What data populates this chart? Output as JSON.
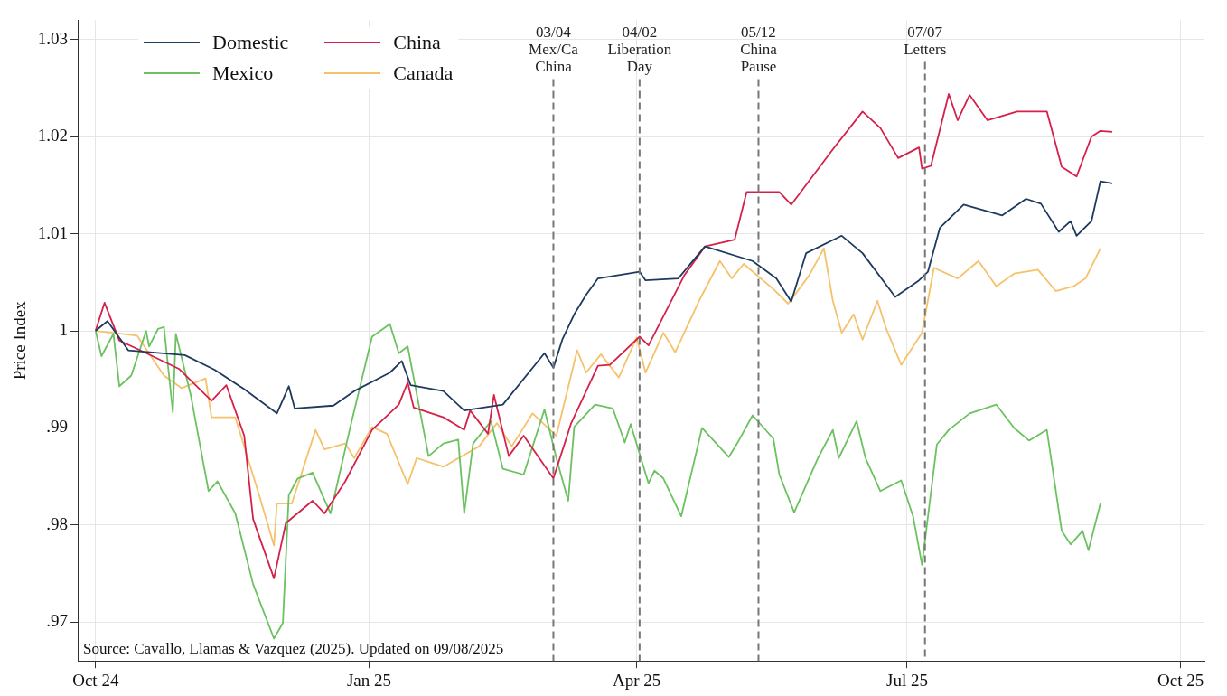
{
  "chart_data": {
    "type": "line",
    "ylabel": "Price Index",
    "xlim": [
      "2024-09-25",
      "2025-10-09"
    ],
    "xticks": [
      {
        "value": "2024-10-01",
        "label": "Oct 24"
      },
      {
        "value": "2025-01-01",
        "label": "Jan 25"
      },
      {
        "value": "2025-04-01",
        "label": "Apr 25"
      },
      {
        "value": "2025-07-01",
        "label": "Jul 25"
      },
      {
        "value": "2025-10-01",
        "label": "Oct 25"
      }
    ],
    "ylim": [
      0.966,
      1.032
    ],
    "yticks": [
      {
        "value": 0.97,
        "label": ".97"
      },
      {
        "value": 0.98,
        "label": ".98"
      },
      {
        "value": 0.99,
        "label": ".99"
      },
      {
        "value": 1,
        "label": "1"
      },
      1.01,
      1.02,
      1.03
    ],
    "grid": true,
    "legend": "top left",
    "line_style": "solid",
    "marker": "none",
    "series": [
      {
        "name": "Domestic",
        "color": "#1f3a5f",
        "x": [
          "2024-10-01",
          "2024-10-05",
          "2024-10-12",
          "2024-10-31",
          "2024-11-10",
          "2024-11-20",
          "2024-12-01",
          "2024-12-05",
          "2024-12-07",
          "2024-12-20",
          "2024-12-27",
          "2025-01-08",
          "2025-01-12",
          "2025-01-15",
          "2025-01-26",
          "2025-02-02",
          "2025-02-15",
          "2025-03-01",
          "2025-03-04",
          "2025-03-07",
          "2025-03-11",
          "2025-03-15",
          "2025-03-19",
          "2025-04-02",
          "2025-04-04",
          "2025-04-15",
          "2025-04-24",
          "2025-05-10",
          "2025-05-18",
          "2025-05-23",
          "2025-05-28",
          "2025-06-09",
          "2025-06-16",
          "2025-06-27",
          "2025-07-05",
          "2025-07-08",
          "2025-07-12",
          "2025-07-20",
          "2025-08-02",
          "2025-08-10",
          "2025-08-15",
          "2025-08-21",
          "2025-08-25",
          "2025-08-27",
          "2025-09-01",
          "2025-09-04",
          "2025-09-08"
        ],
        "values": [
          1.0,
          1.001,
          0.998,
          0.9975,
          0.996,
          0.994,
          0.9915,
          0.9943,
          0.992,
          0.9923,
          0.9938,
          0.9957,
          0.9969,
          0.9944,
          0.9938,
          0.9918,
          0.9924,
          0.9977,
          0.9962,
          0.9991,
          1.0017,
          1.0037,
          1.0054,
          1.0061,
          1.0052,
          1.0054,
          1.0087,
          1.0072,
          1.0054,
          1.003,
          1.008,
          1.0098,
          1.008,
          1.0035,
          1.0052,
          1.0061,
          1.0106,
          1.013,
          1.0119,
          1.0136,
          1.0131,
          1.0102,
          1.0113,
          1.0098,
          1.0113,
          1.0154,
          1.0152
        ]
      },
      {
        "name": "China",
        "color": "#d6204a",
        "x": [
          "2024-10-01",
          "2024-10-04",
          "2024-10-09",
          "2024-10-16",
          "2024-10-29",
          "2024-11-09",
          "2024-11-14",
          "2024-11-20",
          "2024-11-23",
          "2024-11-30",
          "2024-12-04",
          "2024-12-13",
          "2024-12-17",
          "2024-12-24",
          "2025-01-02",
          "2025-01-11",
          "2025-01-14",
          "2025-01-16",
          "2025-01-26",
          "2025-02-02",
          "2025-02-04",
          "2025-02-10",
          "2025-02-12",
          "2025-02-17",
          "2025-02-22",
          "2025-03-04",
          "2025-03-10",
          "2025-03-19",
          "2025-03-23",
          "2025-04-02",
          "2025-04-05",
          "2025-04-17",
          "2025-04-24",
          "2025-05-04",
          "2025-05-08",
          "2025-05-19",
          "2025-05-23",
          "2025-06-06",
          "2025-06-16",
          "2025-06-22",
          "2025-06-28",
          "2025-07-05",
          "2025-07-06",
          "2025-07-09",
          "2025-07-15",
          "2025-07-18",
          "2025-07-22",
          "2025-07-28",
          "2025-08-07",
          "2025-08-17",
          "2025-08-22",
          "2025-08-27",
          "2025-09-01",
          "2025-09-04",
          "2025-09-08"
        ],
        "values": [
          1.0,
          1.0029,
          0.999,
          0.998,
          0.9961,
          0.9928,
          0.9944,
          0.9892,
          0.9806,
          0.9745,
          0.9802,
          0.9825,
          0.9812,
          0.9845,
          0.9898,
          0.9924,
          0.9947,
          0.9921,
          0.9911,
          0.9898,
          0.9918,
          0.9894,
          0.9934,
          0.9871,
          0.9892,
          0.9848,
          0.9905,
          0.9964,
          0.9965,
          0.9994,
          0.9985,
          1.0057,
          1.0087,
          1.0094,
          1.0143,
          1.0143,
          1.013,
          1.0187,
          1.0226,
          1.0209,
          1.0178,
          1.0189,
          1.0167,
          1.017,
          1.0244,
          1.0217,
          1.0243,
          1.0217,
          1.0226,
          1.0226,
          1.0169,
          1.0159,
          1.02,
          1.0206,
          1.0205
        ]
      },
      {
        "name": "Mexico",
        "color": "#6cc160",
        "x": [
          "2024-10-01",
          "2024-10-03",
          "2024-10-07",
          "2024-10-09",
          "2024-10-13",
          "2024-10-18",
          "2024-10-19",
          "2024-10-22",
          "2024-10-24",
          "2024-10-27",
          "2024-10-28",
          "2024-11-02",
          "2024-11-08",
          "2024-11-11",
          "2024-11-17",
          "2024-11-23",
          "2024-11-30",
          "2024-12-03",
          "2024-12-05",
          "2024-12-08",
          "2024-12-13",
          "2024-12-19",
          "2024-12-26",
          "2025-01-02",
          "2025-01-08",
          "2025-01-11",
          "2025-01-14",
          "2025-01-21",
          "2025-01-26",
          "2025-01-31",
          "2025-02-02",
          "2025-02-05",
          "2025-02-11",
          "2025-02-15",
          "2025-02-22",
          "2025-03-01",
          "2025-03-05",
          "2025-03-09",
          "2025-03-11",
          "2025-03-18",
          "2025-03-24",
          "2025-03-28",
          "2025-03-30",
          "2025-04-05",
          "2025-04-07",
          "2025-04-10",
          "2025-04-16",
          "2025-04-23",
          "2025-05-02",
          "2025-05-05",
          "2025-05-10",
          "2025-05-17",
          "2025-05-19",
          "2025-05-24",
          "2025-06-01",
          "2025-06-06",
          "2025-06-08",
          "2025-06-14",
          "2025-06-17",
          "2025-06-22",
          "2025-06-29",
          "2025-07-03",
          "2025-07-06",
          "2025-07-11",
          "2025-07-15",
          "2025-07-22",
          "2025-07-31",
          "2025-08-06",
          "2025-08-11",
          "2025-08-17",
          "2025-08-22",
          "2025-08-25",
          "2025-08-29",
          "2025-08-31",
          "2025-09-04"
        ],
        "values": [
          1.0,
          0.9974,
          0.9997,
          0.9943,
          0.9954,
          1.0,
          0.9984,
          1.0002,
          1.0004,
          0.9916,
          0.9997,
          0.9934,
          0.9835,
          0.9845,
          0.9812,
          0.9739,
          0.9683,
          0.9699,
          0.9831,
          0.9848,
          0.9854,
          0.9812,
          0.9905,
          0.9994,
          1.0007,
          0.9977,
          0.9984,
          0.9871,
          0.9884,
          0.9888,
          0.9812,
          0.9884,
          0.9907,
          0.9858,
          0.9852,
          0.9919,
          0.9869,
          0.9825,
          0.9901,
          0.9924,
          0.992,
          0.9885,
          0.9904,
          0.9843,
          0.9856,
          0.9848,
          0.9809,
          0.99,
          0.987,
          0.9885,
          0.9913,
          0.9889,
          0.9852,
          0.9813,
          0.9869,
          0.9898,
          0.9869,
          0.9907,
          0.9869,
          0.9835,
          0.9846,
          0.9809,
          0.9759,
          0.9883,
          0.9898,
          0.9915,
          0.9924,
          0.99,
          0.9887,
          0.9898,
          0.9794,
          0.978,
          0.9794,
          0.9774,
          0.9822
        ]
      },
      {
        "name": "Canada",
        "color": "#f5c26b",
        "x": [
          "2024-10-01",
          "2024-10-10",
          "2024-10-15",
          "2024-10-24",
          "2024-10-30",
          "2024-11-07",
          "2024-11-09",
          "2024-11-17",
          "2024-11-25",
          "2024-11-30",
          "2024-12-01",
          "2024-12-06",
          "2024-12-14",
          "2024-12-17",
          "2024-12-24",
          "2024-12-27",
          "2025-01-02",
          "2025-01-07",
          "2025-01-14",
          "2025-01-17",
          "2025-01-26",
          "2025-02-07",
          "2025-02-13",
          "2025-02-18",
          "2025-02-25",
          "2025-03-05",
          "2025-03-12",
          "2025-03-15",
          "2025-03-20",
          "2025-03-26",
          "2025-04-01",
          "2025-04-04",
          "2025-04-10",
          "2025-04-14",
          "2025-04-22",
          "2025-04-29",
          "2025-05-03",
          "2025-05-07",
          "2025-05-17",
          "2025-05-22",
          "2025-05-29",
          "2025-06-03",
          "2025-06-06",
          "2025-06-09",
          "2025-06-13",
          "2025-06-16",
          "2025-06-21",
          "2025-06-24",
          "2025-06-29",
          "2025-07-06",
          "2025-07-10",
          "2025-07-18",
          "2025-07-25",
          "2025-07-31",
          "2025-08-06",
          "2025-08-14",
          "2025-08-20",
          "2025-08-26",
          "2025-08-30",
          "2025-09-04"
        ],
        "values": [
          1.0,
          0.9997,
          0.9995,
          0.9954,
          0.9941,
          0.9951,
          0.9911,
          0.9911,
          0.9831,
          0.9779,
          0.9822,
          0.9822,
          0.9898,
          0.9878,
          0.9884,
          0.9869,
          0.9901,
          0.9894,
          0.9842,
          0.9869,
          0.986,
          0.9881,
          0.9905,
          0.9881,
          0.9915,
          0.9892,
          0.998,
          0.9957,
          0.9976,
          0.9952,
          0.9993,
          0.9957,
          0.9998,
          0.9978,
          1.0031,
          1.0072,
          1.0054,
          1.0069,
          1.0043,
          1.0028,
          1.0057,
          1.0085,
          1.0031,
          0.9998,
          1.0017,
          0.9991,
          1.0031,
          1.0002,
          0.9965,
          0.9998,
          1.0065,
          1.0054,
          1.0072,
          1.0046,
          1.0059,
          1.0063,
          1.0041,
          1.0046,
          1.0054,
          1.0085
        ]
      }
    ],
    "ref_lines": [
      {
        "axis": "x",
        "value": "2025-03-04",
        "label": "03/04\nMex/Ca\nChina",
        "line_style": "dashed",
        "color": "#777777"
      },
      {
        "axis": "x",
        "value": "2025-04-02",
        "label": "04/02\nLiberation\nDay",
        "line_style": "dashed",
        "color": "#777777"
      },
      {
        "axis": "x",
        "value": "2025-05-12",
        "label": "05/12\nChina\nPause",
        "line_style": "dashed",
        "color": "#777777"
      },
      {
        "axis": "x",
        "value": "2025-07-07",
        "label": "07/07\nLetters",
        "line_style": "dashed",
        "color": "#777777"
      }
    ],
    "annotations": [
      "Source: Cavallo, Llamas & Vazquez (2025). Updated on 09/08/2025"
    ]
  }
}
